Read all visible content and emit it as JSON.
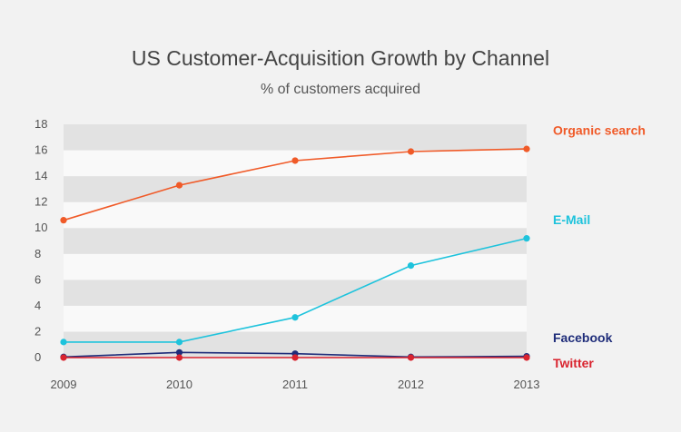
{
  "chart_data": {
    "type": "line",
    "title": "US Customer-Acquisition Growth by Channel",
    "subtitle": "% of customers acquired",
    "xlabel": "",
    "ylabel": "",
    "x": [
      "2009",
      "2010",
      "2011",
      "2012",
      "2013"
    ],
    "ylim": [
      0,
      18
    ],
    "yticks": [
      0,
      2,
      4,
      6,
      8,
      10,
      12,
      14,
      16,
      18
    ],
    "grid": "alternating horizontal bands",
    "legend": "series labels at right end of lines",
    "series": [
      {
        "name": "Organic search",
        "color": "#f05a28",
        "values": [
          10.6,
          13.3,
          15.2,
          15.9,
          16.1
        ]
      },
      {
        "name": "E-Mail",
        "color": "#1ec3dc",
        "values": [
          1.2,
          1.2,
          3.1,
          7.1,
          9.2
        ]
      },
      {
        "name": "Facebook",
        "color": "#1f2d7a",
        "values": [
          0.05,
          0.4,
          0.3,
          0.05,
          0.1
        ]
      },
      {
        "name": "Twitter",
        "color": "#d9232e",
        "values": [
          0.0,
          0.0,
          0.0,
          0.0,
          0.0
        ]
      }
    ]
  }
}
